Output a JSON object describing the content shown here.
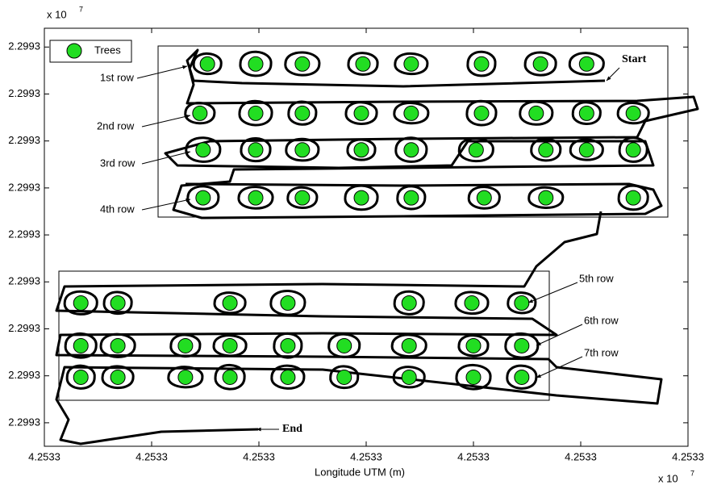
{
  "chart_data": {
    "type": "scatter",
    "xlabel": "Longitude UTM (m)",
    "x_multiplier": "x 10",
    "x_multiplier_exponent": "7",
    "y_multiplier": "x 10",
    "y_multiplier_exponent": "7",
    "xlim": [
      42533140,
      42533260
    ],
    "ylim": [
      22993015,
      22993104
    ],
    "xticks": [
      {
        "value": 42533140,
        "label": "4.2533"
      },
      {
        "value": 42533160,
        "label": "4.2533"
      },
      {
        "value": 42533180,
        "label": "4.2533"
      },
      {
        "value": 42533200,
        "label": "4.2533"
      },
      {
        "value": 42533220,
        "label": "4.2533"
      },
      {
        "value": 42533240,
        "label": "4.2533"
      },
      {
        "value": 42533260,
        "label": "4.2533"
      }
    ],
    "yticks": [
      {
        "value": 22993020,
        "label": "2.2993"
      },
      {
        "value": 22993030,
        "label": "2.2993"
      },
      {
        "value": 22993040,
        "label": "2.2993"
      },
      {
        "value": 22993050,
        "label": "2.2993"
      },
      {
        "value": 22993060,
        "label": "2.2993"
      },
      {
        "value": 22993070,
        "label": "2.2993"
      },
      {
        "value": 22993080,
        "label": "2.2993"
      },
      {
        "value": 22993090,
        "label": "2.2993"
      },
      {
        "value": 22993100,
        "label": "2.2993"
      }
    ],
    "legend": "upper left",
    "annotations": [
      "1st row",
      "2nd row",
      "3rd row",
      "4th row",
      "5th row",
      "6th row",
      "7th row",
      "Start",
      "End"
    ],
    "x": [
      42533170.4,
      42533179.4,
      42533188.1,
      42533199.4,
      42533208.4,
      42533221.5,
      42533232.5,
      42533241.1,
      42533169.0,
      42533179.4,
      42533188.1,
      42533199.1,
      42533208.4,
      42533221.5,
      42533231.7,
      42533241.1,
      42533249.8,
      42533169.6,
      42533179.4,
      42533188.1,
      42533199.1,
      42533208.4,
      42533220.5,
      42533233.5,
      42533241.1,
      42533249.8,
      42533169.6,
      42533179.4,
      42533188.1,
      42533199.1,
      42533208.4,
      42533222.0,
      42533233.5,
      42533249.8,
      42533146.8,
      42533153.7,
      42533174.6,
      42533185.4,
      42533208.0,
      42533219.7,
      42533229.0,
      42533146.8,
      42533153.7,
      42533166.3,
      42533174.6,
      42533185.4,
      42533195.9,
      42533208.0,
      42533220.0,
      42533229.0,
      42533146.8,
      42533153.7,
      42533166.3,
      42533174.6,
      42533185.4,
      42533195.9,
      42533208.0,
      42533220.0,
      42533229.0
    ],
    "series": [
      {
        "name": "Trees",
        "color": "#22dd22",
        "values": [
          22993096.4,
          22993096.4,
          22993096.4,
          22993096.4,
          22993096.4,
          22993096.4,
          22993096.4,
          22993096.4,
          22993085.9,
          22993085.9,
          22993085.9,
          22993085.9,
          22993085.9,
          22993085.9,
          22993085.9,
          22993085.9,
          22993085.9,
          22993078.1,
          22993078.1,
          22993078.1,
          22993078.1,
          22993078.1,
          22993078.1,
          22993078.1,
          22993078.1,
          22993078.1,
          22993067.9,
          22993067.9,
          22993067.9,
          22993067.9,
          22993067.9,
          22993067.9,
          22993067.9,
          22993067.9,
          22993045.5,
          22993045.5,
          22993045.5,
          22993045.5,
          22993045.5,
          22993045.5,
          22993045.5,
          22993036.4,
          22993036.4,
          22993036.4,
          22993036.4,
          22993036.4,
          22993036.4,
          22993036.4,
          22993036.4,
          22993036.4,
          22993029.7,
          22993029.7,
          22993029.7,
          22993029.7,
          22993029.7,
          22993029.7,
          22993029.7,
          22993029.7,
          22993029.7
        ]
      }
    ]
  }
}
